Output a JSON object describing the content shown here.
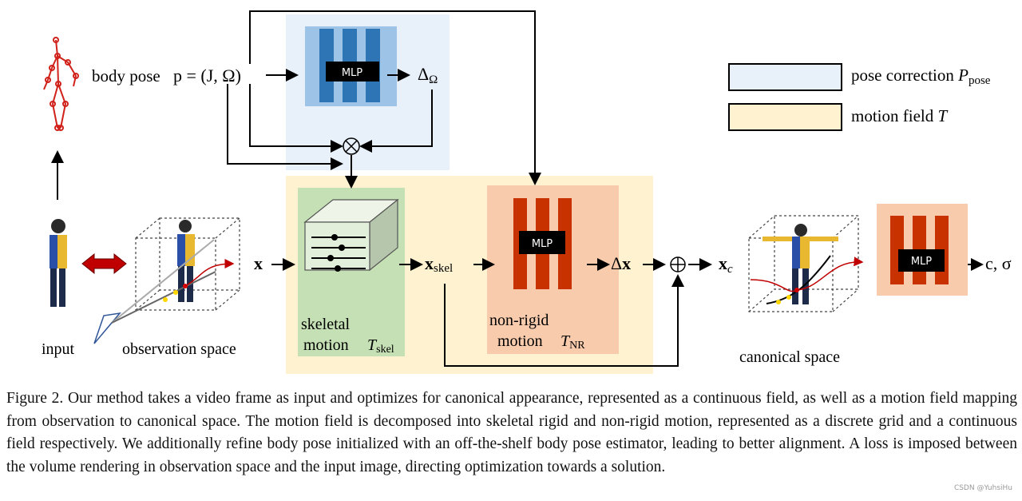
{
  "diagram": {
    "body_pose_label": "body pose",
    "pose_formula": "p = (J, Ω)",
    "delta_omega": "ΔΩ",
    "mlp_label": "MLP",
    "x_label": "x",
    "x_skel_label": "xskel",
    "delta_x_label": "Δx",
    "x_c_label": "xc",
    "output_label": "c, σ",
    "input_label": "input",
    "observation_space_label": "observation space",
    "canonical_space_label": "canonical space",
    "skeletal_motion_label_1": "skeletal",
    "skeletal_motion_label_2": "motion",
    "skeletal_symbol": "Tskel",
    "nonrigid_label_1": "non-rigid",
    "nonrigid_label_2": "motion",
    "nonrigid_symbol": "TNR",
    "legend": [
      {
        "label": "pose correction Ppose",
        "color": "#e8f0f9"
      },
      {
        "label": "motion field T",
        "color": "#fef2d0"
      }
    ],
    "colors": {
      "pose_block": "#2e75b6",
      "motion_block": "#c83200",
      "skeletal_box": "#c5e0b4",
      "nonrigid_box": "#f8cbad"
    }
  },
  "caption": "Figure 2. Our method takes a video frame as input and optimizes for canonical appearance, represented as a continuous field, as well as a motion field mapping from observation to canonical space. The motion field is decomposed into skeletal rigid and non-rigid motion, represented as a discrete grid and a continuous field respectively. We additionally refine body pose initialized with an off-the-shelf body pose estimator, leading to better alignment. A loss is imposed between the volume rendering in observation space and the input image, directing optimization towards a solution.",
  "watermark": "CSDN @YuhsiHu"
}
